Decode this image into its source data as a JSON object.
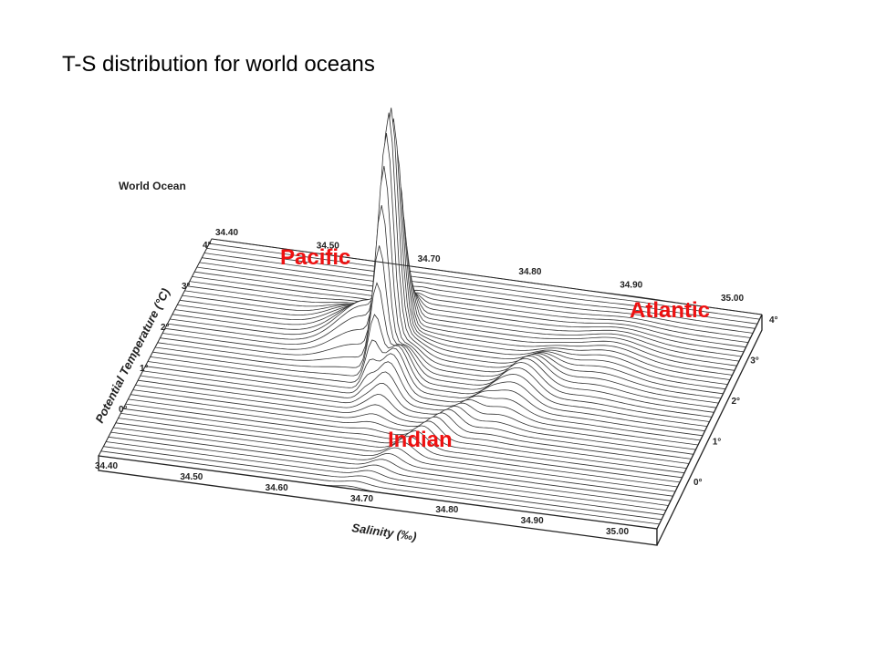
{
  "title": "T-S distribution for world oceans",
  "figure": {
    "panel_label": "World Ocean",
    "x_axis_label": "Salinity (‰)",
    "y_axis_label": "Potential Temperature (°C)",
    "front_salinity_ticks": [
      "34.40",
      "34.50",
      "34.60",
      "34.70",
      "34.80",
      "34.90",
      "35.00"
    ],
    "back_salinity_ticks": [
      "34.40",
      "34.50",
      "34.70",
      "34.80",
      "34.90",
      "35.00"
    ],
    "left_temperature_ticks": [
      "4°",
      "3°",
      "2°",
      "1°",
      "0°"
    ],
    "right_temperature_ticks": [
      "4°",
      "3°",
      "2°",
      "1°",
      "0°"
    ]
  },
  "annotations": {
    "pacific": "Pacific",
    "atlantic": "Atlantic",
    "indian": "Indian"
  }
}
